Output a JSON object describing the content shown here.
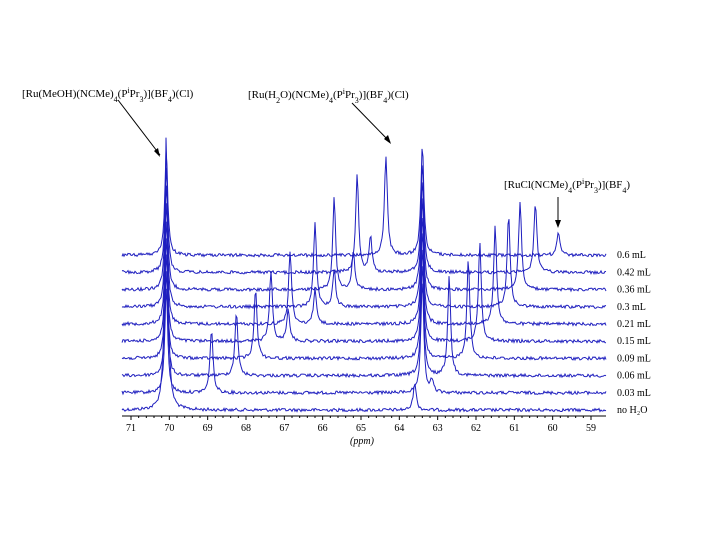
{
  "chart_data": {
    "type": "line",
    "description_free": true,
    "x_axis": {
      "label": "(ppm)",
      "reversed": true,
      "ticks": [
        71,
        70,
        69,
        68,
        67,
        66,
        65,
        64,
        63,
        62,
        61,
        60,
        59
      ],
      "range": [
        71.5,
        58.5
      ]
    },
    "traces": [
      {
        "label": "no H₂O",
        "peaks": [
          [
            70.08,
            1.0
          ],
          [
            63.6,
            0.1
          ]
        ]
      },
      {
        "label": "0.03 mL",
        "peaks": [
          [
            70.08,
            0.9
          ],
          [
            68.9,
            0.55
          ],
          [
            63.4,
            0.95
          ],
          [
            63.15,
            0.1
          ]
        ]
      },
      {
        "label": "0.06 mL",
        "peaks": [
          [
            70.08,
            0.9
          ],
          [
            68.25,
            0.55
          ],
          [
            63.4,
            0.95
          ],
          [
            62.7,
            0.85
          ]
        ]
      },
      {
        "label": "0.09 mL",
        "peaks": [
          [
            70.08,
            0.9
          ],
          [
            67.75,
            0.6
          ],
          [
            63.4,
            0.95
          ],
          [
            62.2,
            0.85
          ]
        ]
      },
      {
        "label": "0.15 mL",
        "peaks": [
          [
            70.08,
            0.9
          ],
          [
            67.35,
            0.6
          ],
          [
            63.4,
            0.95
          ],
          [
            61.9,
            0.85
          ],
          [
            66.9,
            0.28
          ]
        ]
      },
      {
        "label": "0.21 mL",
        "peaks": [
          [
            70.08,
            0.9
          ],
          [
            66.85,
            0.62
          ],
          [
            63.4,
            0.95
          ],
          [
            61.5,
            0.85
          ],
          [
            66.2,
            0.3
          ]
        ]
      },
      {
        "label": "0.3 mL",
        "peaks": [
          [
            70.08,
            0.9
          ],
          [
            66.2,
            0.72
          ],
          [
            63.4,
            0.95
          ],
          [
            61.15,
            0.8
          ],
          [
            65.7,
            0.32
          ]
        ]
      },
      {
        "label": "0.36 mL",
        "peaks": [
          [
            70.08,
            0.9
          ],
          [
            65.7,
            0.78
          ],
          [
            63.4,
            0.95
          ],
          [
            60.85,
            0.75
          ],
          [
            65.2,
            0.33
          ]
        ]
      },
      {
        "label": "0.42 mL",
        "peaks": [
          [
            70.08,
            0.9
          ],
          [
            65.1,
            0.84
          ],
          [
            63.4,
            0.95
          ],
          [
            60.45,
            0.6
          ],
          [
            64.75,
            0.3
          ]
        ]
      },
      {
        "label": "0.6 mL",
        "peaks": [
          [
            70.08,
            0.9
          ],
          [
            64.35,
            0.85
          ],
          [
            63.4,
            0.95
          ],
          [
            59.85,
            0.2
          ]
        ]
      }
    ],
    "annotations": [
      {
        "id": "meoh",
        "text_main": "[Ru(MeOH)(NCMe)",
        "sub1": "4",
        "text_mid": "(P",
        "sup": "i",
        "text_pr": "Pr",
        "sub2": "3",
        "text_tail": ")](BF",
        "sub3": "4",
        "text_end": ")(Cl)"
      },
      {
        "id": "h2o",
        "text_main": "[Ru(H",
        "sub0": "2",
        "text_o": "O)(NCMe)",
        "sub1": "4",
        "text_mid": "(P",
        "sup": "i",
        "text_pr": "Pr",
        "sub2": "3",
        "text_tail": ")](BF",
        "sub3": "4",
        "text_end": ")(Cl)"
      },
      {
        "id": "rucl",
        "text_main": "[RuCl(NCMe)",
        "sub1": "4",
        "text_mid": "(P",
        "sup": "i",
        "text_pr": "Pr",
        "sub2": "3",
        "text_tail": ")](BF",
        "sub3": "4",
        "text_end": ")"
      }
    ],
    "colors": {
      "trace": "#1f1fbf",
      "axis": "#000000"
    }
  }
}
